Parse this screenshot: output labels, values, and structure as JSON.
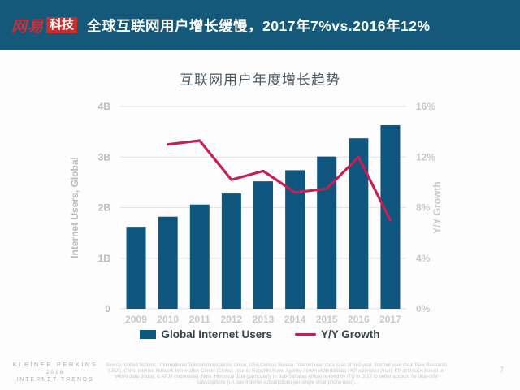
{
  "header": {
    "logo": {
      "brand": "网易",
      "sub": "科技"
    },
    "title": "全球互联网用户增长缓慢，2017年7%vs.2016年12%"
  },
  "chart_data": {
    "type": "bar",
    "title": "互联网用户年度增长趋势",
    "categories": [
      "2009",
      "2010",
      "2011",
      "2012",
      "2013",
      "2014",
      "2015",
      "2016",
      "2017"
    ],
    "series": [
      {
        "name": "Global Internet Users",
        "type": "bar",
        "axis": "left",
        "unit": "B",
        "values": [
          1.62,
          1.82,
          2.06,
          2.28,
          2.52,
          2.74,
          3.01,
          3.37,
          3.63
        ]
      },
      {
        "name": "Y/Y Growth",
        "type": "line",
        "axis": "right",
        "unit": "%",
        "values": [
          null,
          13,
          13.3,
          10.2,
          10.9,
          9.2,
          9.5,
          12,
          7
        ]
      }
    ],
    "left_axis": {
      "label": "Internet Users, Global",
      "min": 0,
      "max": 4,
      "ticks": [
        "0",
        "1B",
        "2B",
        "3B",
        "4B"
      ]
    },
    "right_axis": {
      "label": "Y/Y Growth",
      "min": 0,
      "max": 16,
      "ticks": [
        "0%",
        "4%",
        "8%",
        "12%",
        "16%"
      ]
    },
    "legend": [
      {
        "label": "Global Internet Users",
        "swatch": "rect"
      },
      {
        "label": "Y/Y Growth",
        "swatch": "line"
      }
    ],
    "grid": true,
    "legend_position": "bottom"
  },
  "footer": {
    "source": "Source: United Nations / International Telecommunications Union, USA Census Bureau. Internet user data is as of mid-year. Internet user data: Pew Research (USA), China Internet Network Information Center (China), Islamic Republic News Agency / InternetWorldStats / KP estimates (Iran), KP estimates based on IAMAI data (India), & APJII (Indonesia).  Note: Historical data (particularly in Sub-Saharan Africa) revised by ITU in 2017 to better account for dual-SIM subscriptions (i.e. two Internet subscriptions per single smartphone user).",
    "brand_lines": [
      "KLEINER PERKINS",
      "2018",
      "INTERNET TRENDS"
    ],
    "page_number": "7"
  },
  "colors": {
    "header_bg": "#14597a",
    "bar": "#0e567d",
    "line": "#c41f56",
    "logo_red": "#cd2c2c",
    "grid": "#e3e5e7",
    "tick_label": "#b7bcc0",
    "right_tick_label": "#c6cacd",
    "chart_title": "#4d5b66",
    "legend_text": "#354550"
  }
}
